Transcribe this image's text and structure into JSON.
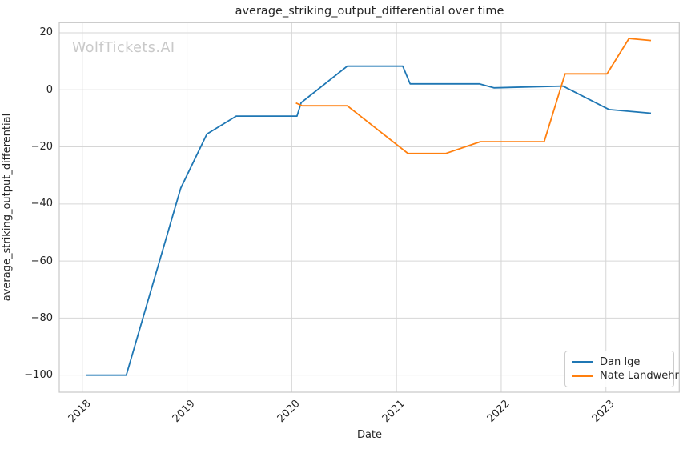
{
  "watermark": {
    "text": "WolfTickets.AI",
    "color": "#c9c9c9"
  },
  "chart_data": {
    "type": "line",
    "title": "average_striking_output_differential over time",
    "xlabel": "Date",
    "ylabel": "average_striking_output_differential",
    "xlim": [
      2017.78,
      2023.7
    ],
    "ylim": [
      -105.98,
      23.56
    ],
    "grid": true,
    "grid_color": "#d6d6d6",
    "spine_color": "#c7c7c7",
    "legend_position": "lower right",
    "x_ticks": {
      "values": [
        2018,
        2019,
        2020,
        2021,
        2022,
        2023
      ],
      "labels": [
        "2018",
        "2019",
        "2020",
        "2021",
        "2022",
        "2023"
      ],
      "rotation": 45
    },
    "y_ticks": {
      "values": [
        20,
        0,
        -20,
        -40,
        -60,
        -80,
        -100
      ],
      "labels": [
        "20",
        "0",
        "−20",
        "−40",
        "−60",
        "−80",
        "−100"
      ]
    },
    "series": [
      {
        "name": "Dan Ige",
        "color": "#1f77b4",
        "points": [
          [
            2018.04,
            -100
          ],
          [
            2018.42,
            -100
          ],
          [
            2018.94,
            -34.5
          ],
          [
            2019.19,
            -15.5
          ],
          [
            2019.47,
            -9.2
          ],
          [
            2020.05,
            -9.2
          ],
          [
            2020.09,
            -4.5
          ],
          [
            2020.53,
            8.3
          ],
          [
            2021.06,
            8.3
          ],
          [
            2021.13,
            2.1
          ],
          [
            2021.79,
            2.1
          ],
          [
            2021.93,
            0.7
          ],
          [
            2022.59,
            1.3
          ],
          [
            2023.03,
            -6.9
          ],
          [
            2023.43,
            -8.2
          ]
        ]
      },
      {
        "name": "Nate Landwehr",
        "color": "#ff7f0e",
        "points": [
          [
            2020.04,
            -4.6
          ],
          [
            2020.1,
            -5.6
          ],
          [
            2020.53,
            -5.6
          ],
          [
            2021.11,
            -22.3
          ],
          [
            2021.47,
            -22.3
          ],
          [
            2021.8,
            -18.2
          ],
          [
            2022.41,
            -18.2
          ],
          [
            2022.61,
            5.6
          ],
          [
            2023.01,
            5.6
          ],
          [
            2023.22,
            18.0
          ],
          [
            2023.43,
            17.3
          ]
        ]
      }
    ]
  }
}
